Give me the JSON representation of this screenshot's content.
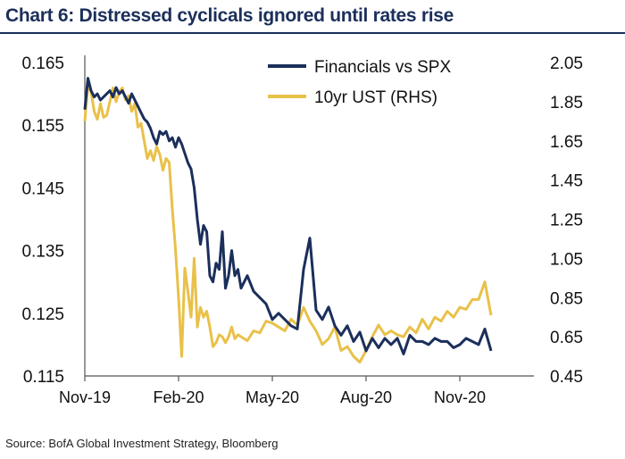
{
  "title": "Chart 6: Distressed cyclicals ignored until rates rise",
  "source": "Source: BofA Global Investment Strategy, Bloomberg",
  "chart_data": {
    "type": "line",
    "title": "Chart 6: Distressed cyclicals ignored until rates rise",
    "xlabel": "",
    "ylabel": "",
    "x_ticks": [
      "Nov-19",
      "Feb-20",
      "May-20",
      "Aug-20",
      "Nov-20"
    ],
    "x_range": [
      "Nov-19",
      "Nov-20"
    ],
    "y_left": {
      "ticks": [
        "0.165",
        "0.155",
        "0.145",
        "0.135",
        "0.125",
        "0.115"
      ],
      "ylim": [
        0.115,
        0.165
      ]
    },
    "y_right": {
      "ticks": [
        "2.05",
        "1.85",
        "1.65",
        "1.45",
        "1.25",
        "1.05",
        "0.85",
        "0.65",
        "0.45"
      ],
      "ylim": [
        0.45,
        2.05
      ]
    },
    "grid": false,
    "legend_position": "top-right",
    "series": [
      {
        "name": "Financials vs SPX",
        "axis": "left",
        "color": "#1b2f5b",
        "x": [
          0,
          0.1,
          0.2,
          0.3,
          0.4,
          0.5,
          0.6,
          0.7,
          0.8,
          0.9,
          1.0,
          1.1,
          1.2,
          1.3,
          1.4,
          1.5,
          1.6,
          1.7,
          1.8,
          1.9,
          2.0,
          2.1,
          2.2,
          2.3,
          2.4,
          2.5,
          2.6,
          2.7,
          2.8,
          2.9,
          3.0,
          3.1,
          3.2,
          3.3,
          3.4,
          3.5,
          3.6,
          3.7,
          3.8,
          3.9,
          4.0,
          4.1,
          4.2,
          4.3,
          4.4,
          4.5,
          4.6,
          4.7,
          4.8,
          4.9,
          5.0,
          5.2,
          5.4,
          5.6,
          5.8,
          6.0,
          6.2,
          6.4,
          6.6,
          6.8,
          7.0,
          7.2,
          7.4,
          7.6,
          7.8,
          8.0,
          8.2,
          8.4,
          8.6,
          8.8,
          9.0,
          9.2,
          9.4,
          9.6,
          9.8,
          10.0,
          10.2,
          10.4,
          10.6,
          10.8,
          11.0,
          11.2,
          11.4,
          11.6,
          11.8,
          12.0,
          12.2,
          12.4,
          12.6,
          12.8,
          13.0
        ],
        "values": [
          0.1575,
          0.1625,
          0.1605,
          0.1595,
          0.16,
          0.159,
          0.1595,
          0.16,
          0.1605,
          0.1595,
          0.161,
          0.16,
          0.1605,
          0.1595,
          0.1585,
          0.16,
          0.159,
          0.158,
          0.157,
          0.156,
          0.1555,
          0.1545,
          0.153,
          0.152,
          0.154,
          0.1535,
          0.154,
          0.1525,
          0.153,
          0.1515,
          0.153,
          0.152,
          0.1505,
          0.149,
          0.148,
          0.145,
          0.14,
          0.136,
          0.139,
          0.138,
          0.131,
          0.13,
          0.133,
          0.132,
          0.138,
          0.129,
          0.131,
          0.135,
          0.131,
          0.132,
          0.129,
          0.131,
          0.1285,
          0.1275,
          0.1265,
          0.124,
          0.125,
          0.124,
          0.123,
          0.1225,
          0.132,
          0.137,
          0.1255,
          0.124,
          0.126,
          0.123,
          0.1215,
          0.123,
          0.1205,
          0.122,
          0.119,
          0.121,
          0.1195,
          0.121,
          0.12,
          0.121,
          0.1185,
          0.1215,
          0.1205,
          0.1205,
          0.12,
          0.121,
          0.1205,
          0.1205,
          0.1195,
          0.12,
          0.121,
          0.1205,
          0.12,
          0.1225,
          0.119
        ]
      },
      {
        "name": "10yr UST (RHS)",
        "axis": "right",
        "color": "#e9c149",
        "x": [
          0,
          0.1,
          0.2,
          0.3,
          0.4,
          0.5,
          0.6,
          0.7,
          0.8,
          0.9,
          1.0,
          1.1,
          1.2,
          1.3,
          1.4,
          1.5,
          1.6,
          1.7,
          1.8,
          1.9,
          2.0,
          2.1,
          2.2,
          2.3,
          2.4,
          2.5,
          2.6,
          2.7,
          2.8,
          2.9,
          3.0,
          3.1,
          3.2,
          3.3,
          3.4,
          3.5,
          3.6,
          3.7,
          3.8,
          3.9,
          4.0,
          4.1,
          4.2,
          4.3,
          4.4,
          4.5,
          4.6,
          4.7,
          4.8,
          4.9,
          5.0,
          5.2,
          5.4,
          5.6,
          5.8,
          6.0,
          6.2,
          6.4,
          6.6,
          6.8,
          7.0,
          7.2,
          7.4,
          7.6,
          7.8,
          8.0,
          8.2,
          8.4,
          8.6,
          8.8,
          9.0,
          9.2,
          9.4,
          9.6,
          9.8,
          10.0,
          10.2,
          10.4,
          10.6,
          10.8,
          11.0,
          11.2,
          11.4,
          11.6,
          11.8,
          12.0,
          12.2,
          12.4,
          12.6,
          12.8,
          13.0
        ],
        "values": [
          1.75,
          1.94,
          1.9,
          1.8,
          1.76,
          1.84,
          1.77,
          1.78,
          1.85,
          1.92,
          1.85,
          1.9,
          1.92,
          1.86,
          1.88,
          1.8,
          1.84,
          1.72,
          1.74,
          1.65,
          1.56,
          1.6,
          1.55,
          1.62,
          1.58,
          1.5,
          1.56,
          1.54,
          1.3,
          1.1,
          0.85,
          0.55,
          1.0,
          0.88,
          0.75,
          1.05,
          0.7,
          0.8,
          0.75,
          0.78,
          0.7,
          0.6,
          0.62,
          0.66,
          0.65,
          0.62,
          0.65,
          0.7,
          0.64,
          0.66,
          0.65,
          0.63,
          0.68,
          0.67,
          0.73,
          0.72,
          0.7,
          0.68,
          0.74,
          0.71,
          0.8,
          0.73,
          0.68,
          0.61,
          0.64,
          0.7,
          0.58,
          0.6,
          0.55,
          0.52,
          0.58,
          0.65,
          0.71,
          0.66,
          0.68,
          0.66,
          0.65,
          0.7,
          0.67,
          0.74,
          0.69,
          0.75,
          0.73,
          0.78,
          0.75,
          0.8,
          0.79,
          0.84,
          0.84,
          0.93,
          0.76
        ]
      }
    ]
  }
}
